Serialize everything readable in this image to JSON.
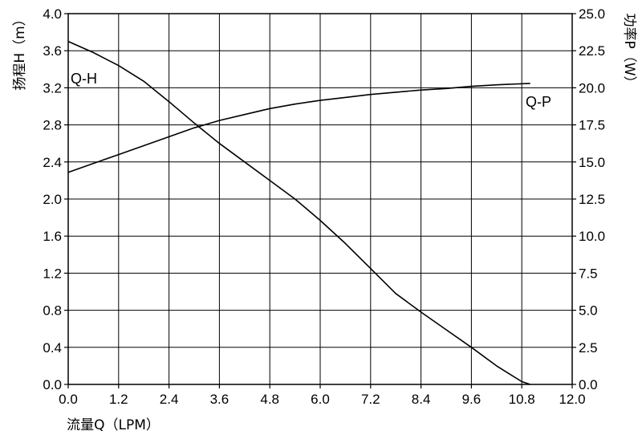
{
  "chart_data": {
    "type": "line",
    "xlabel": "流量Q（LPM）",
    "ylabel_left": "扬程H（m）",
    "ylabel_right": "功率P（W）",
    "xlim": [
      0,
      12
    ],
    "ylim_left": [
      0,
      4
    ],
    "ylim_right": [
      0,
      25
    ],
    "grid": true,
    "x_ticks": [
      "0.0",
      "1.2",
      "2.4",
      "3.6",
      "4.8",
      "6.0",
      "7.2",
      "8.4",
      "9.6",
      "10.8",
      "12.0"
    ],
    "y_left_ticks": [
      "0.0",
      "0.4",
      "0.8",
      "1.2",
      "1.6",
      "2.0",
      "2.4",
      "2.8",
      "3.2",
      "3.6",
      "4.0"
    ],
    "y_right_ticks": [
      "0.0",
      "2.5",
      "5.0",
      "7.5",
      "10.0",
      "12.5",
      "15.0",
      "17.5",
      "20.0",
      "22.5",
      "25.0"
    ],
    "series": [
      {
        "name": "Q-H",
        "axis": "left",
        "x": [
          0,
          0.6,
          1.2,
          1.8,
          2.4,
          3.0,
          3.6,
          4.2,
          4.8,
          5.4,
          6.0,
          6.6,
          7.2,
          7.8,
          8.4,
          9.0,
          9.6,
          10.2,
          10.8,
          11.0
        ],
        "y": [
          3.7,
          3.58,
          3.44,
          3.27,
          3.05,
          2.82,
          2.6,
          2.4,
          2.2,
          2.0,
          1.77,
          1.52,
          1.25,
          0.98,
          0.78,
          0.59,
          0.4,
          0.2,
          0.03,
          0.0
        ]
      },
      {
        "name": "Q-P",
        "axis": "right",
        "x": [
          0,
          0.6,
          1.2,
          1.8,
          2.4,
          3.0,
          3.6,
          4.2,
          4.8,
          5.4,
          6.0,
          6.6,
          7.2,
          7.8,
          8.4,
          9.0,
          9.6,
          10.2,
          11.0
        ],
        "y": [
          14.3,
          14.9,
          15.5,
          16.1,
          16.7,
          17.3,
          17.8,
          18.2,
          18.6,
          18.9,
          19.15,
          19.35,
          19.55,
          19.7,
          19.85,
          19.95,
          20.1,
          20.2,
          20.3
        ]
      }
    ]
  }
}
